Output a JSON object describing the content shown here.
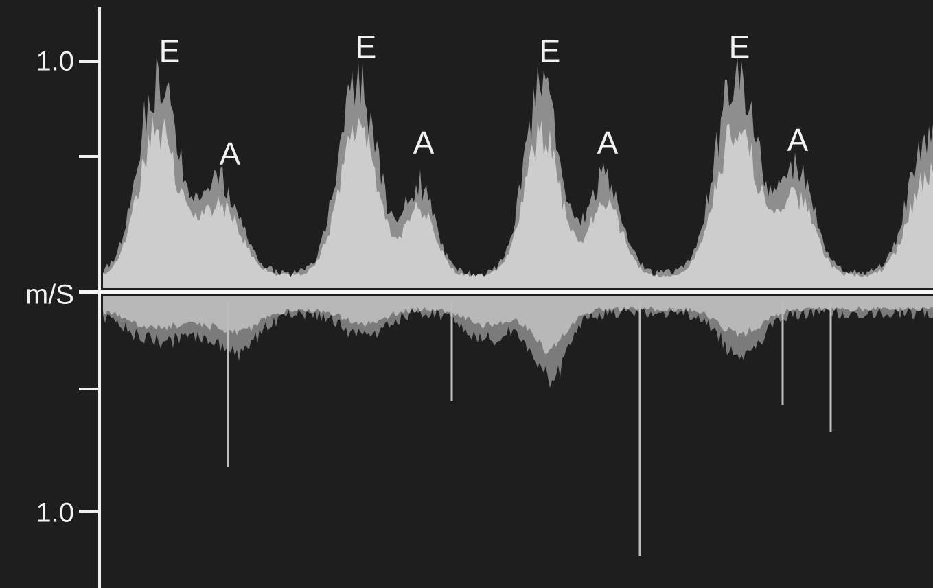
{
  "axis_labels": [
    "1.0",
    "m/S",
    "1.0"
  ],
  "peak_labels": [
    {
      "e": "E",
      "a": "A"
    },
    {
      "e": "E",
      "a": "A"
    },
    {
      "e": "E",
      "a": "A"
    },
    {
      "e": "E",
      "a": "A"
    }
  ]
}
